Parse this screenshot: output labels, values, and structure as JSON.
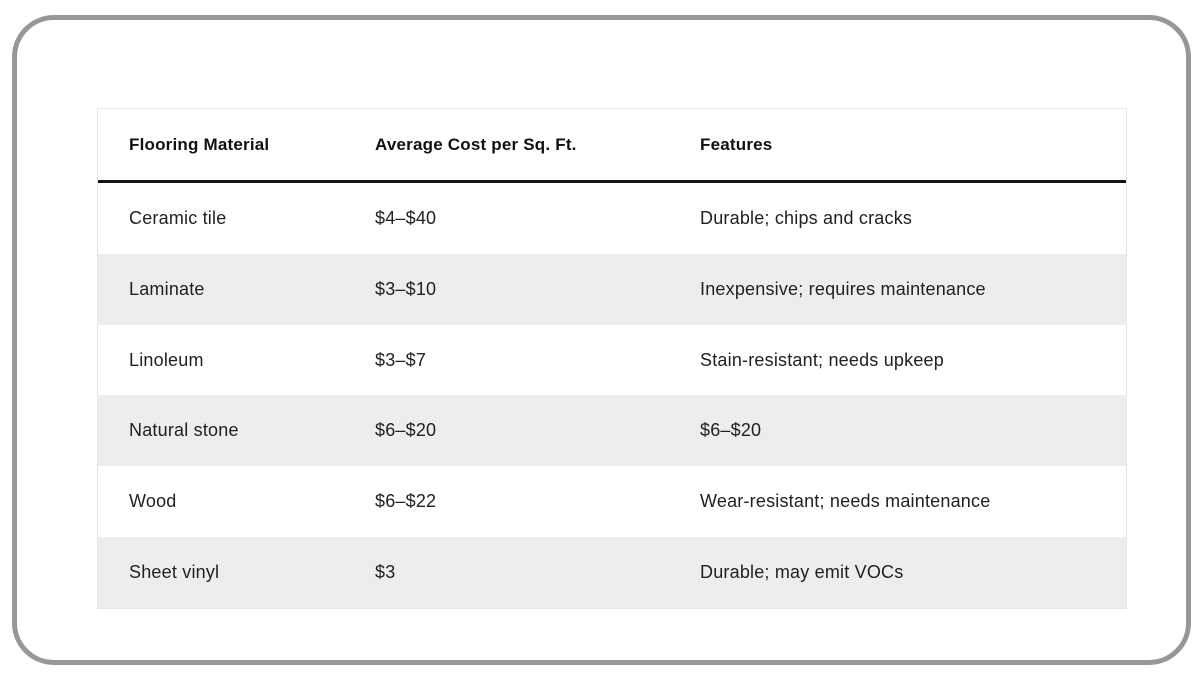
{
  "frame": {
    "border_color": "#979797"
  },
  "table": {
    "columns": [
      {
        "label": "Flooring Material"
      },
      {
        "label": "Average Cost per Sq. Ft."
      },
      {
        "label": "Features"
      }
    ],
    "rows": [
      {
        "material": "Ceramic tile",
        "cost": "$4–$40",
        "features": "Durable; chips and cracks"
      },
      {
        "material": "Laminate",
        "cost": "$3–$10",
        "features": "Inexpensive; requires maintenance"
      },
      {
        "material": "Linoleum",
        "cost": "$3–$7",
        "features": "Stain-resistant; needs upkeep"
      },
      {
        "material": "Natural stone",
        "cost": "$6–$20",
        "features": "$6–$20"
      },
      {
        "material": "Wood",
        "cost": "$6–$22",
        "features": "Wear-resistant; needs maintenance"
      },
      {
        "material": "Sheet vinyl",
        "cost": "$3",
        "features": "Durable; may emit VOCs"
      }
    ],
    "colors": {
      "stripe": "#ededed",
      "header_rule": "#161616",
      "table_border": "#e6e6e6",
      "text": "#202124"
    }
  }
}
